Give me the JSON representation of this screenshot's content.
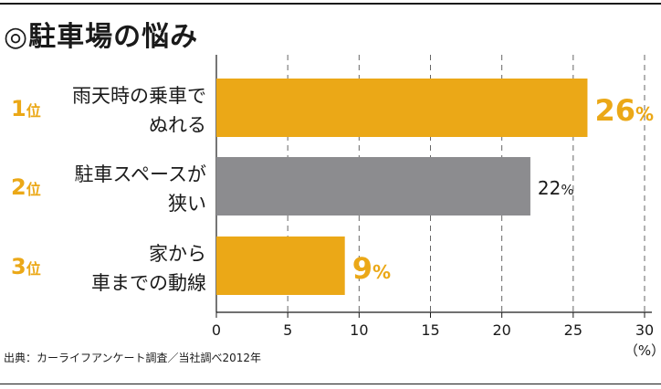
{
  "title": "◎駐車場の悩み",
  "source": "出典：カーライフアンケート調査／当社調べ2012年",
  "colors": {
    "highlight": "#eba817",
    "secondary": "#8c8c8f",
    "rank": "#eba817",
    "axis": "#666666",
    "text": "#1a1a1a"
  },
  "chart_data": {
    "type": "bar",
    "orientation": "horizontal",
    "title": "◎駐車場の悩み",
    "unit_label": "（%）",
    "xlim": [
      0,
      30
    ],
    "xticks": [
      "0",
      "5",
      "10",
      "15",
      "20",
      "25",
      "30"
    ],
    "grid": "vertical-dashed",
    "items": [
      {
        "rank": "1",
        "rank_suffix": "位",
        "label": [
          "雨天時の乗車で",
          "ぬれる"
        ],
        "value": 26,
        "value_text": "26",
        "pct": "%",
        "emphasis": true,
        "color": "#eba817"
      },
      {
        "rank": "2",
        "rank_suffix": "位",
        "label": [
          "駐車スペースが",
          "狭い"
        ],
        "value": 22,
        "value_text": "22",
        "pct": "%",
        "emphasis": false,
        "color": "#8c8c8f"
      },
      {
        "rank": "3",
        "rank_suffix": "位",
        "label": [
          "家から",
          "車までの動線"
        ],
        "value": 9,
        "value_text": "9",
        "pct": "%",
        "emphasis": true,
        "color": "#eba817"
      }
    ]
  }
}
